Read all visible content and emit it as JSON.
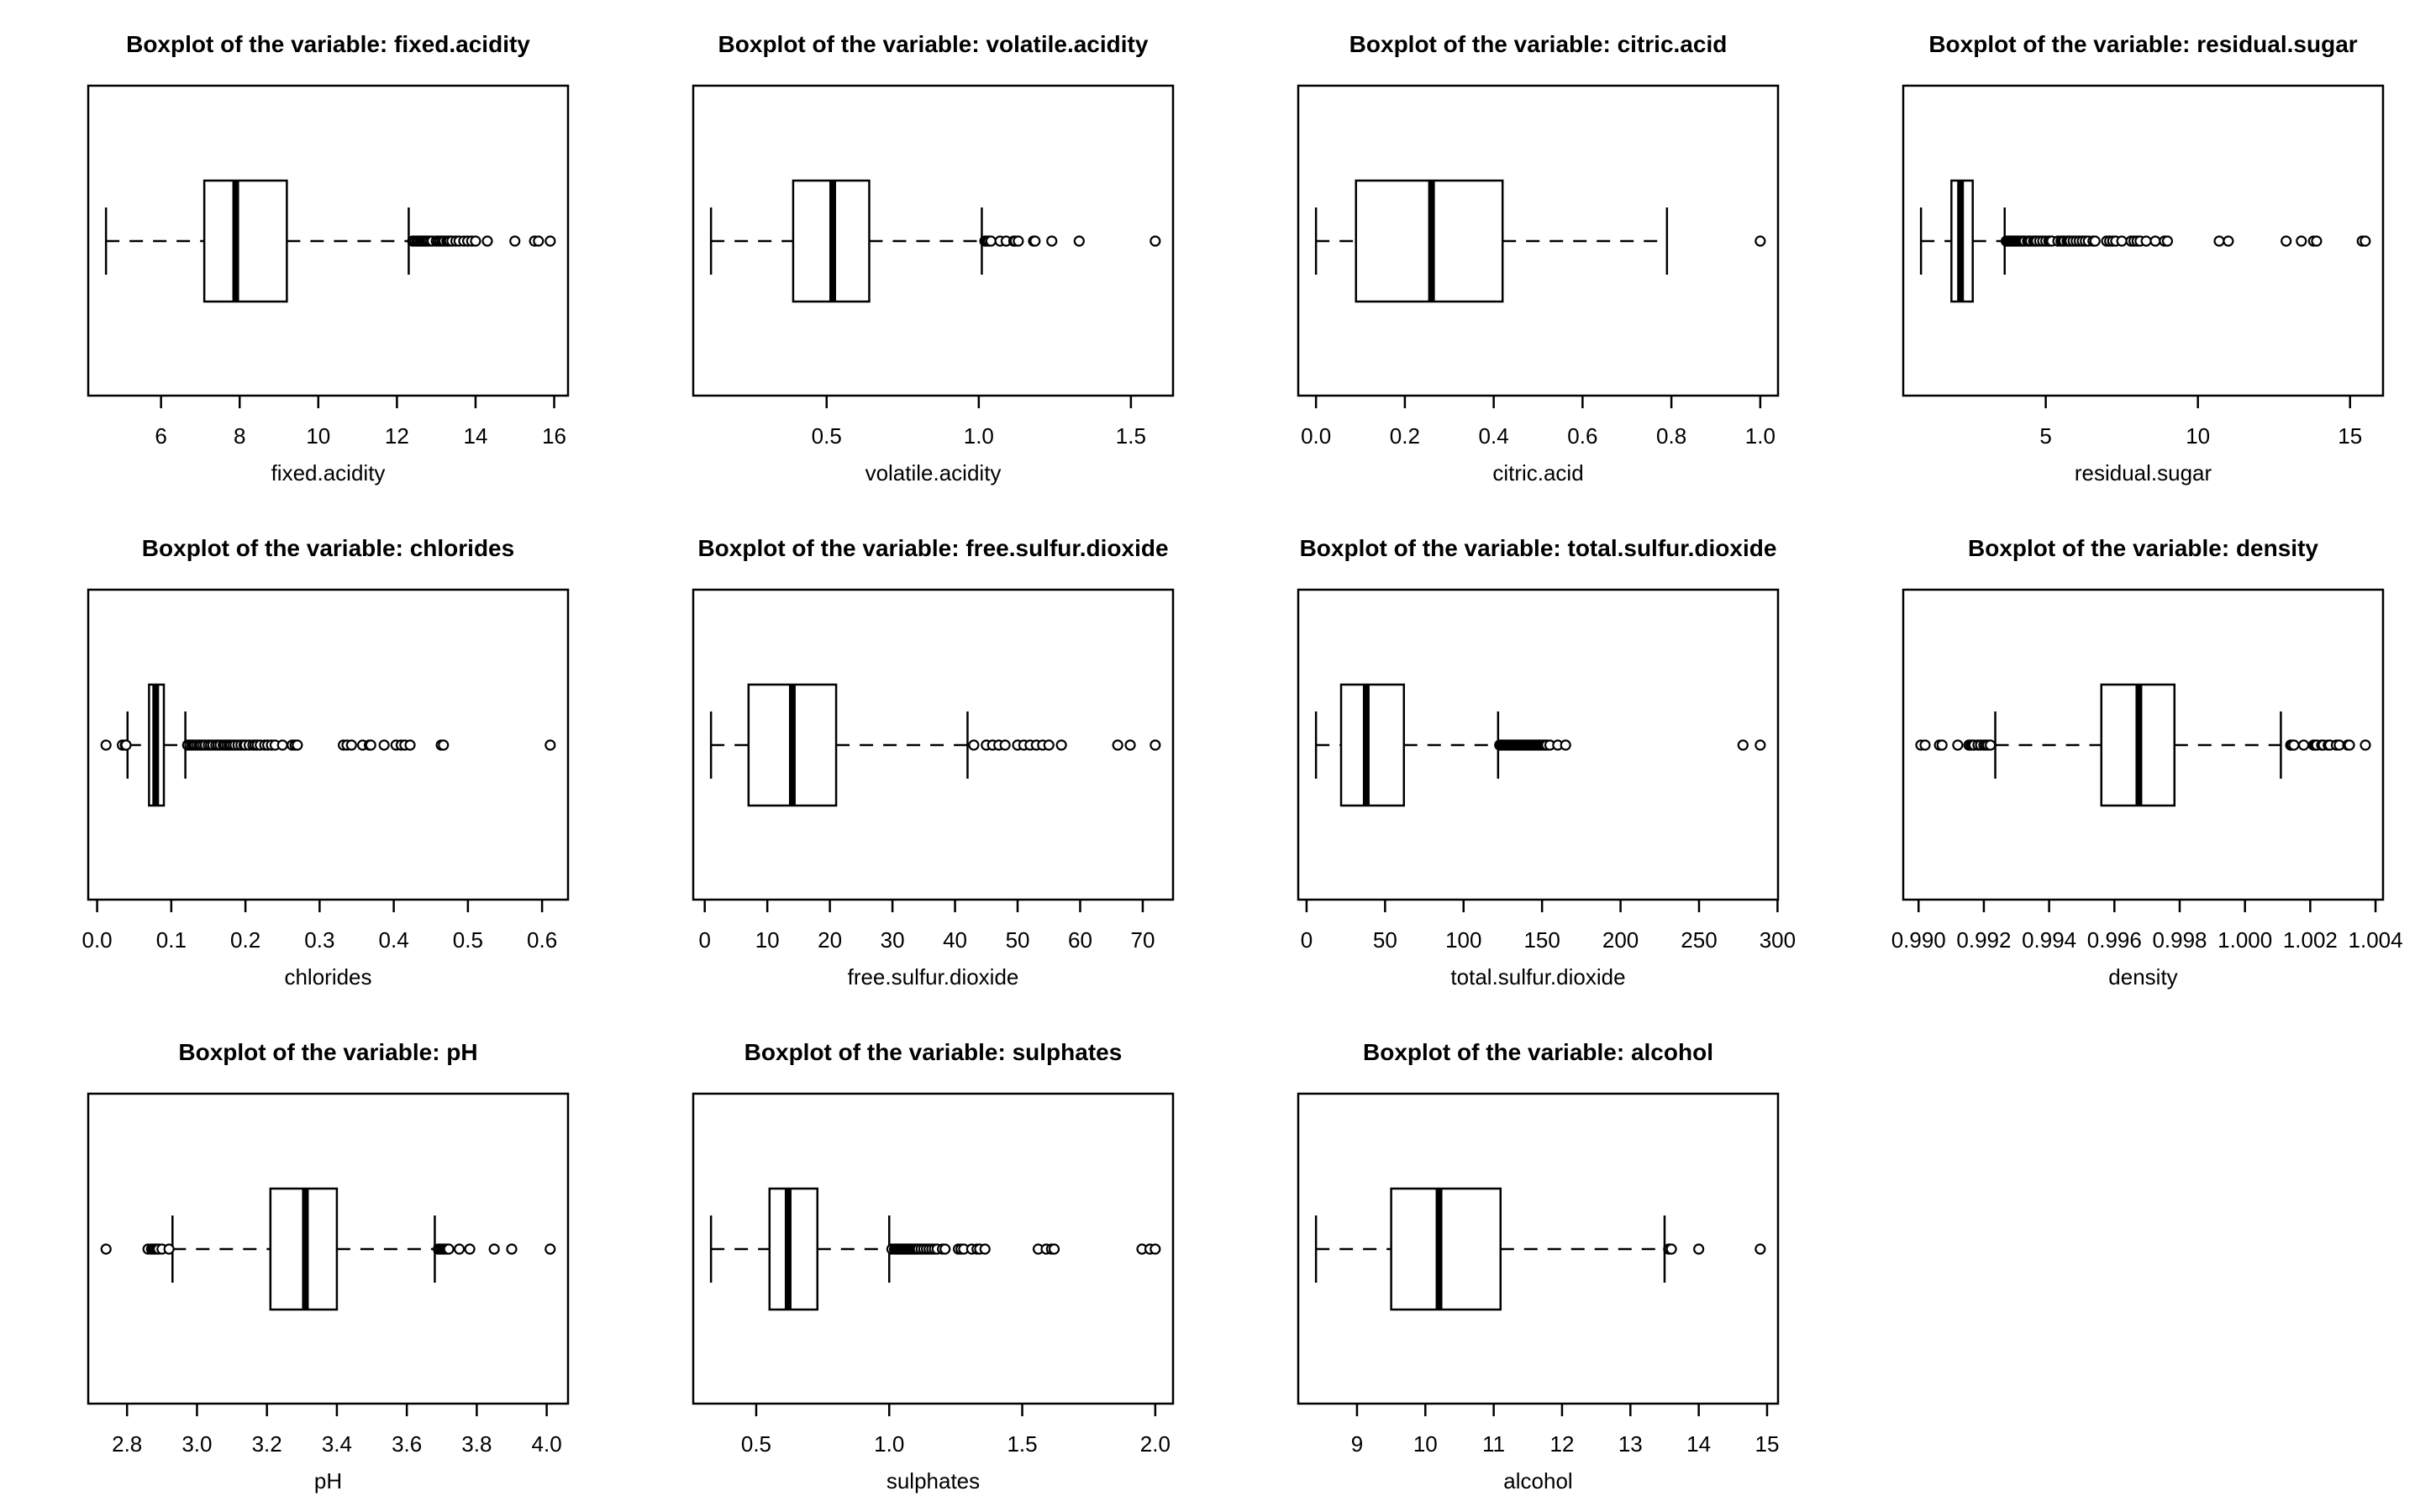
{
  "figure": {
    "background": "#ffffff",
    "ink": "#000000",
    "grid_rows": 3,
    "grid_cols": 4,
    "title_prefix": "Boxplot of the variable:"
  },
  "chart_data": [
    {
      "type": "boxplot",
      "orientation": "horizontal",
      "title": "Boxplot of the variable: fixed.acidity",
      "xlabel": "fixed.acidity",
      "xlim": [
        4.148,
        16.352
      ],
      "ticks": [
        6,
        8,
        10,
        12,
        14,
        16
      ],
      "tick_labels": [
        "6",
        "8",
        "10",
        "12",
        "14",
        "16"
      ],
      "stats": {
        "whisker_low": 4.6,
        "q1": 7.1,
        "median": 7.9,
        "q3": 9.2,
        "whisker_high": 12.3
      },
      "outliers": [
        12.4,
        12.42,
        12.45,
        12.5,
        12.53,
        12.55,
        12.6,
        12.63,
        12.67,
        12.7,
        12.73,
        12.77,
        12.8,
        12.85,
        12.9,
        13.0,
        13.05,
        13.1,
        13.15,
        13.2,
        13.27,
        13.3,
        13.34,
        13.4,
        13.5,
        13.58,
        13.7,
        13.8,
        13.9,
        14.0,
        14.3,
        15.0,
        15.5,
        15.6,
        15.9
      ]
    },
    {
      "type": "boxplot",
      "orientation": "horizontal",
      "title": "Boxplot of the variable: volatile.acidity",
      "xlabel": "volatile.acidity",
      "xlim": [
        0.0616,
        1.6384
      ],
      "ticks": [
        0.5,
        1.0,
        1.5
      ],
      "tick_labels": [
        "0.5",
        "1.0",
        "1.5"
      ],
      "stats": {
        "whisker_low": 0.12,
        "q1": 0.39,
        "median": 0.52,
        "q3": 0.64,
        "whisker_high": 1.01
      },
      "outliers": [
        1.02,
        1.025,
        1.03,
        1.033,
        1.04,
        1.07,
        1.09,
        1.115,
        1.12,
        1.13,
        1.18,
        1.185,
        1.24,
        1.33,
        1.58
      ]
    },
    {
      "type": "boxplot",
      "orientation": "horizontal",
      "title": "Boxplot of the variable: citric.acid",
      "xlabel": "citric.acid",
      "xlim": [
        -0.04,
        1.04
      ],
      "ticks": [
        0.0,
        0.2,
        0.4,
        0.6,
        0.8,
        1.0
      ],
      "tick_labels": [
        "0.0",
        "0.2",
        "0.4",
        "0.6",
        "0.8",
        "1.0"
      ],
      "stats": {
        "whisker_low": 0.0,
        "q1": 0.09,
        "median": 0.26,
        "q3": 0.42,
        "whisker_high": 0.79
      },
      "outliers": [
        1.0
      ]
    },
    {
      "type": "boxplot",
      "orientation": "horizontal",
      "title": "Boxplot of the variable: residual.sugar",
      "xlabel": "residual.sugar",
      "xlim": [
        0.316,
        16.084
      ],
      "ticks": [
        5,
        10,
        15
      ],
      "tick_labels": [
        "5",
        "10",
        "15"
      ],
      "stats": {
        "whisker_low": 0.9,
        "q1": 1.9,
        "median": 2.2,
        "q3": 2.6,
        "whisker_high": 3.65
      },
      "outliers": [
        3.7,
        3.75,
        3.8,
        3.83,
        3.86,
        3.9,
        3.95,
        4.0,
        4.05,
        4.1,
        4.15,
        4.2,
        4.25,
        4.3,
        4.4,
        4.45,
        4.5,
        4.6,
        4.65,
        4.7,
        4.8,
        4.9,
        5.0,
        5.1,
        5.15,
        5.2,
        5.4,
        5.5,
        5.55,
        5.6,
        5.7,
        5.75,
        5.8,
        5.9,
        6.0,
        6.1,
        6.2,
        6.3,
        6.4,
        6.55,
        6.62,
        7.0,
        7.1,
        7.2,
        7.3,
        7.5,
        7.8,
        7.9,
        8.0,
        8.1,
        8.3,
        8.6,
        8.9,
        9.0,
        10.7,
        11.0,
        12.9,
        13.4,
        13.8,
        13.9,
        15.4,
        15.5
      ]
    },
    {
      "type": "boxplot",
      "orientation": "horizontal",
      "title": "Boxplot of the variable: chlorides",
      "xlabel": "chlorides",
      "xlim": [
        -0.012,
        0.635
      ],
      "ticks": [
        0.0,
        0.1,
        0.2,
        0.3,
        0.4,
        0.5,
        0.6
      ],
      "tick_labels": [
        "0.0",
        "0.1",
        "0.2",
        "0.3",
        "0.4",
        "0.5",
        "0.6"
      ],
      "stats": {
        "whisker_low": 0.041,
        "q1": 0.07,
        "median": 0.079,
        "q3": 0.09,
        "whisker_high": 0.119
      },
      "outliers": [
        0.012,
        0.034,
        0.038,
        0.039,
        0.122,
        0.125,
        0.128,
        0.13,
        0.132,
        0.135,
        0.138,
        0.14,
        0.143,
        0.146,
        0.15,
        0.153,
        0.156,
        0.16,
        0.163,
        0.166,
        0.17,
        0.172,
        0.175,
        0.178,
        0.18,
        0.183,
        0.186,
        0.19,
        0.194,
        0.198,
        0.2,
        0.205,
        0.21,
        0.213,
        0.216,
        0.22,
        0.226,
        0.23,
        0.235,
        0.24,
        0.25,
        0.263,
        0.267,
        0.27,
        0.332,
        0.337,
        0.343,
        0.358,
        0.367,
        0.369,
        0.387,
        0.403,
        0.41,
        0.415,
        0.422,
        0.464,
        0.467,
        0.611
      ]
    },
    {
      "type": "boxplot",
      "orientation": "horizontal",
      "title": "Boxplot of the variable: free.sulfur.dioxide",
      "xlabel": "free.sulfur.dioxide",
      "xlim": [
        -1.84,
        74.84
      ],
      "ticks": [
        0,
        10,
        20,
        30,
        40,
        50,
        60,
        70
      ],
      "tick_labels": [
        "0",
        "10",
        "20",
        "30",
        "40",
        "50",
        "60",
        "70"
      ],
      "stats": {
        "whisker_low": 1,
        "q1": 7,
        "median": 14,
        "q3": 21,
        "whisker_high": 42
      },
      "outliers": [
        43,
        45,
        46,
        47,
        48,
        50,
        51,
        52,
        53,
        54,
        55,
        57,
        66,
        68,
        72
      ]
    },
    {
      "type": "boxplot",
      "orientation": "horizontal",
      "title": "Boxplot of the variable: total.sulfur.dioxide",
      "xlabel": "total.sulfur.dioxide",
      "xlim": [
        -5.32,
        300.32
      ],
      "ticks": [
        0,
        50,
        100,
        150,
        200,
        250,
        300
      ],
      "tick_labels": [
        "0",
        "50",
        "100",
        "150",
        "200",
        "250",
        "300"
      ],
      "stats": {
        "whisker_low": 6,
        "q1": 22,
        "median": 38,
        "q3": 62,
        "whisker_high": 122
      },
      "outliers": [
        123,
        124,
        125,
        126,
        127,
        128,
        129,
        130,
        131,
        132,
        133,
        134,
        135,
        136,
        137,
        138,
        139,
        140,
        141,
        142,
        143,
        144,
        145,
        146,
        147,
        148,
        149,
        150,
        151,
        152,
        153,
        155,
        160,
        165,
        278,
        289
      ]
    },
    {
      "type": "boxplot",
      "orientation": "horizontal",
      "title": "Boxplot of the variable: density",
      "xlabel": "density",
      "xlim": [
        0.98953,
        1.00423
      ],
      "ticks": [
        0.99,
        0.992,
        0.994,
        0.996,
        0.998,
        1.0,
        1.002,
        1.004
      ],
      "tick_labels": [
        "0.990",
        "0.992",
        "0.994",
        "0.996",
        "0.998",
        "1.000",
        "1.002",
        "1.004"
      ],
      "stats": {
        "whisker_low": 0.99235,
        "q1": 0.9956,
        "median": 0.99675,
        "q3": 0.99784,
        "whisker_high": 1.0011
      },
      "outliers": [
        0.99007,
        0.9902,
        0.99064,
        0.99072,
        0.9912,
        0.99154,
        0.9916,
        0.99165,
        0.9917,
        0.99182,
        0.9919,
        0.992,
        0.99206,
        0.99212,
        0.9922,
        1.0014,
        1.00144,
        1.0015,
        1.0018,
        1.0021,
        1.00215,
        1.0022,
        1.00235,
        1.0024,
        1.00255,
        1.0026,
        1.0028,
        1.00289,
        1.00315,
        1.0032,
        1.00369
      ]
    },
    {
      "type": "boxplot",
      "orientation": "horizontal",
      "title": "Boxplot of the variable: pH",
      "xlabel": "pH",
      "xlim": [
        2.689,
        4.061
      ],
      "ticks": [
        2.8,
        3.0,
        3.2,
        3.4,
        3.6,
        3.8,
        4.0
      ],
      "tick_labels": [
        "2.8",
        "3.0",
        "3.2",
        "3.4",
        "3.6",
        "3.8",
        "4.0"
      ],
      "stats": {
        "whisker_low": 2.93,
        "q1": 3.21,
        "median": 3.31,
        "q3": 3.4,
        "whisker_high": 3.68
      },
      "outliers": [
        2.74,
        2.86,
        2.87,
        2.875,
        2.88,
        2.885,
        2.89,
        2.9,
        2.92,
        3.69,
        3.695,
        3.7,
        3.705,
        3.71,
        3.715,
        3.72,
        3.75,
        3.78,
        3.85,
        3.9,
        4.01
      ]
    },
    {
      "type": "boxplot",
      "orientation": "horizontal",
      "title": "Boxplot of the variable: sulphates",
      "xlabel": "sulphates",
      "xlim": [
        0.2632,
        2.0668
      ],
      "ticks": [
        0.5,
        1.0,
        1.5,
        2.0
      ],
      "tick_labels": [
        "0.5",
        "1.0",
        "1.5",
        "2.0"
      ],
      "stats": {
        "whisker_low": 0.33,
        "q1": 0.55,
        "median": 0.62,
        "q3": 0.73,
        "whisker_high": 1.0
      },
      "outliers": [
        1.01,
        1.02,
        1.025,
        1.03,
        1.035,
        1.04,
        1.045,
        1.05,
        1.055,
        1.06,
        1.065,
        1.07,
        1.075,
        1.08,
        1.085,
        1.09,
        1.095,
        1.1,
        1.105,
        1.11,
        1.12,
        1.13,
        1.14,
        1.15,
        1.16,
        1.17,
        1.18,
        1.2,
        1.21,
        1.26,
        1.27,
        1.28,
        1.31,
        1.33,
        1.34,
        1.36,
        1.56,
        1.59,
        1.61,
        1.62,
        1.95,
        1.98,
        2.0
      ]
    },
    {
      "type": "boxplot",
      "orientation": "horizontal",
      "title": "Boxplot of the variable: alcohol",
      "xlabel": "alcohol",
      "xlim": [
        8.14,
        15.16
      ],
      "ticks": [
        9,
        10,
        11,
        12,
        13,
        14,
        15
      ],
      "tick_labels": [
        "9",
        "10",
        "11",
        "12",
        "13",
        "14",
        "15"
      ],
      "stats": {
        "whisker_low": 8.4,
        "q1": 9.5,
        "median": 10.2,
        "q3": 11.1,
        "whisker_high": 13.5
      },
      "outliers": [
        13.56,
        13.57,
        13.6,
        14.0,
        14.9
      ]
    }
  ]
}
